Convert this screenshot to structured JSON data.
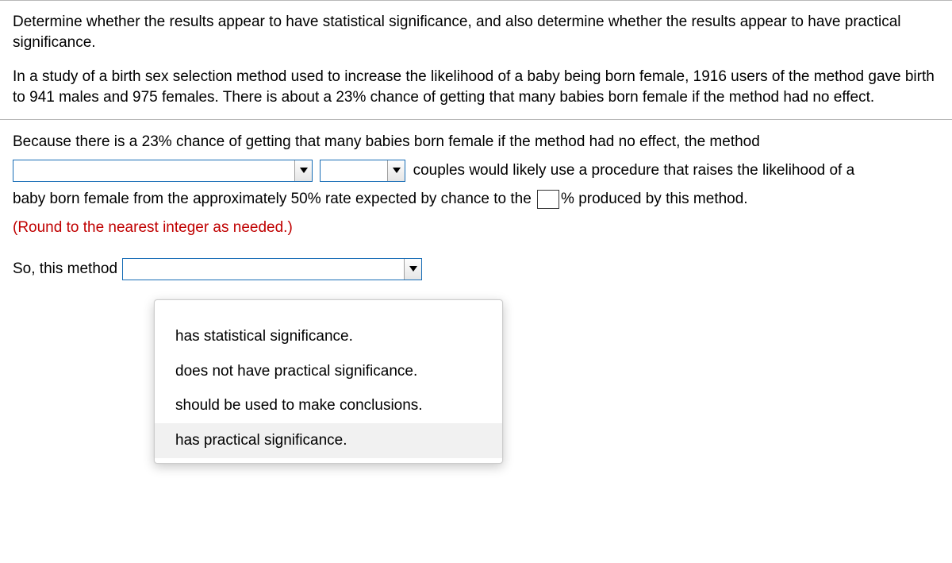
{
  "question": {
    "intro": "Determine whether the results appear to have statistical significance, and also determine whether the results appear to have practical significance.",
    "study": "In a study of a birth sex selection method used to increase the likelihood of a baby being born female, 1916 users of the method gave birth to 941 males and 975 females. There is about a 23% chance of getting that many babies born female if the method had no effect."
  },
  "answer": {
    "lead": "Because there is a 23% chance of getting that many babies born female if the method had no effect, the method",
    "mid1": "couples would likely use a procedure that raises the likelihood of a",
    "mid2_a": "baby born female from the approximately 50% rate expected by chance to the",
    "mid2_b": "% produced by this method.",
    "round_note": "(Round to the nearest integer as needed.)",
    "so_label": "So, this method"
  },
  "dropdown": {
    "options": [
      "has statistical significance.",
      "does not have practical significance.",
      "should be used to make conclusions.",
      "has practical significance."
    ],
    "hover_index": 3
  }
}
